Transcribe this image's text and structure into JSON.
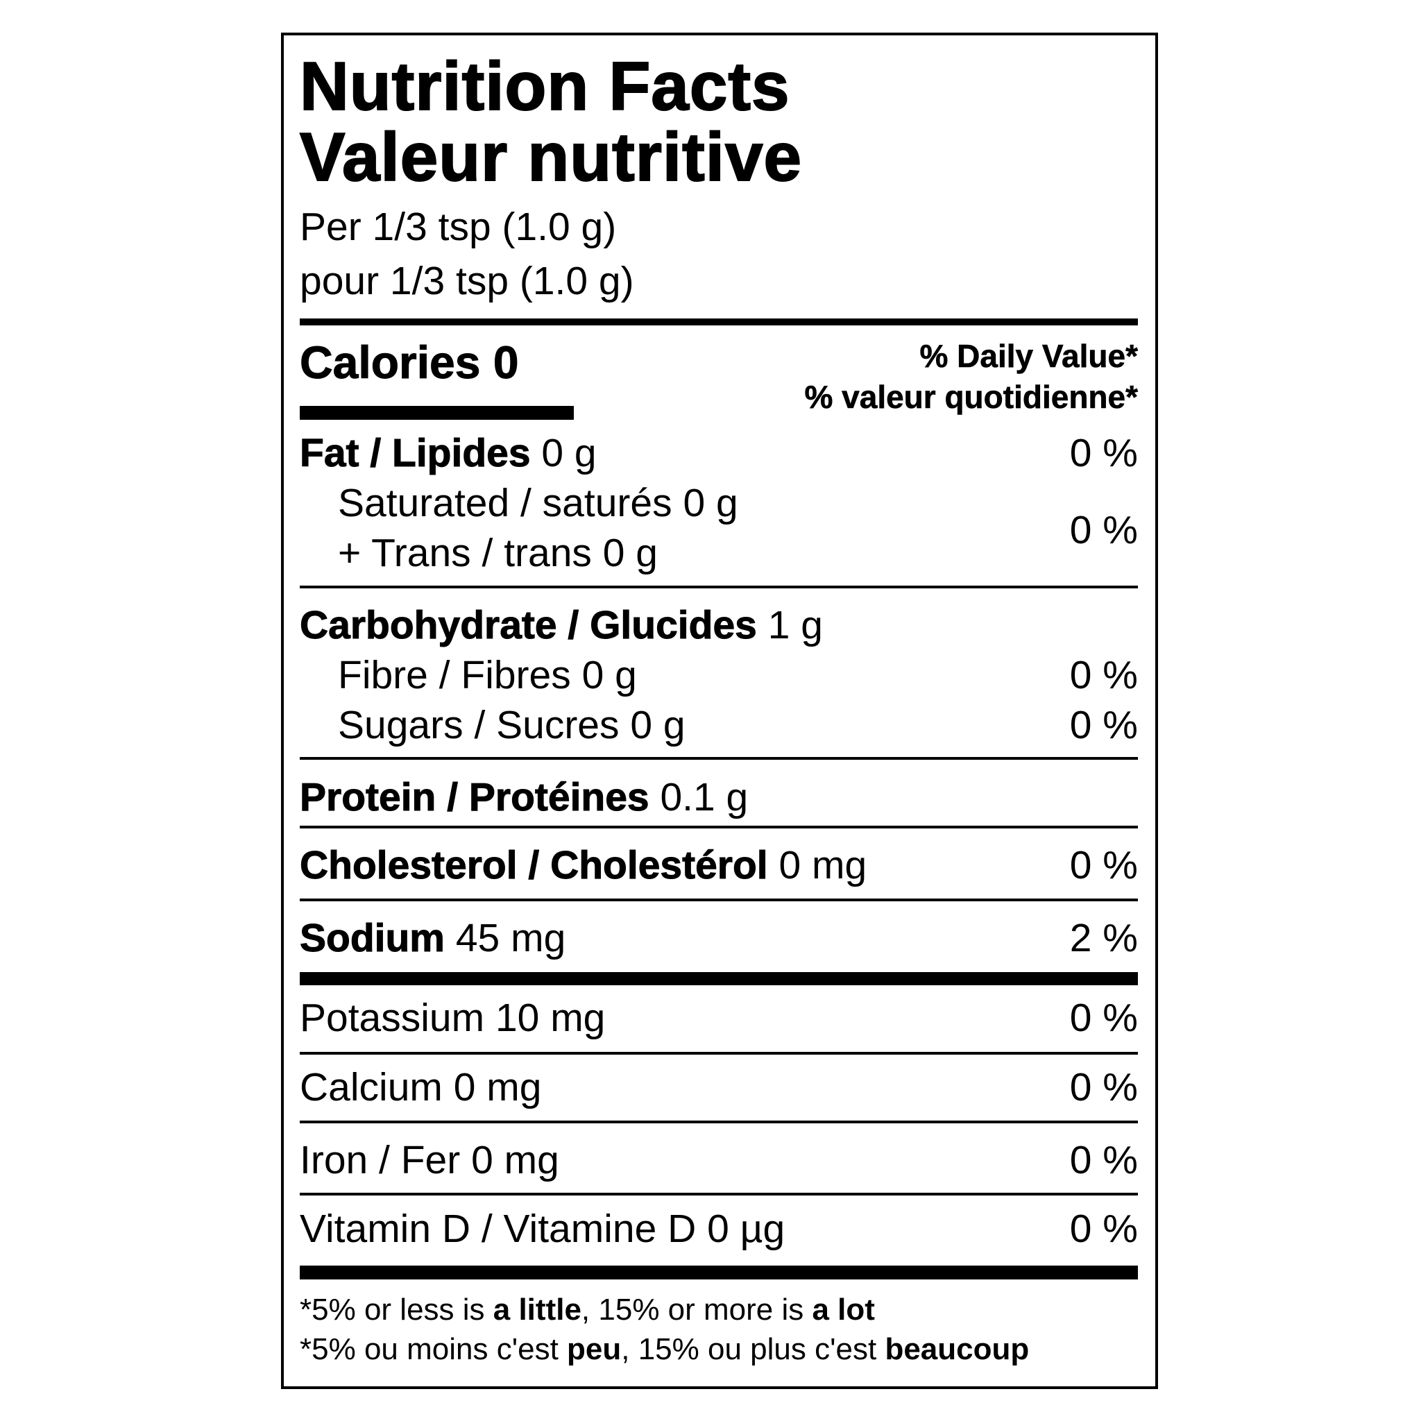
{
  "title_en": "Nutrition Facts",
  "title_fr": "Valeur nutritive",
  "serving_en": "Per 1/3 tsp (1.0 g)",
  "serving_fr": "pour 1/3 tsp (1.0 g)",
  "calories_label": "Calories",
  "calories_value": "0",
  "dv_header_en": "% Daily Value*",
  "dv_header_fr": "% valeur quotidienne*",
  "rows": {
    "fat": {
      "label": "Fat / Lipides",
      "amount": "0 g",
      "dv": "0 %"
    },
    "saturated": {
      "label": "Saturated / saturés",
      "amount": "0 g"
    },
    "trans": {
      "label": "+ Trans / trans",
      "amount": "0 g"
    },
    "sat_trans_dv": "0 %",
    "carb": {
      "label": "Carbohydrate / Glucides",
      "amount": "1 g"
    },
    "fibre": {
      "label": "Fibre / Fibres",
      "amount": "0 g",
      "dv": "0 %"
    },
    "sugars": {
      "label": "Sugars / Sucres",
      "amount": "0 g",
      "dv": "0 %"
    },
    "protein": {
      "label": "Protein / Protéines",
      "amount": "0.1 g"
    },
    "cholesterol": {
      "label": "Cholesterol / Cholestérol",
      "amount": "0 mg",
      "dv": "0 %"
    },
    "sodium": {
      "label": "Sodium",
      "amount": "45 mg",
      "dv": "2 %"
    },
    "potassium": {
      "label": "Potassium",
      "amount": "10 mg",
      "dv": "0 %"
    },
    "calcium": {
      "label": "Calcium",
      "amount": "0 mg",
      "dv": "0 %"
    },
    "iron": {
      "label": "Iron / Fer",
      "amount": "0 mg",
      "dv": "0 %"
    },
    "vitd": {
      "label": "Vitamin D / Vitamine D",
      "amount": "0 µg",
      "dv": "0 %"
    }
  },
  "footer": {
    "en": {
      "a": "*5% or less is ",
      "b": "a little",
      "c": ", 15% or more is ",
      "d": "a lot"
    },
    "fr": {
      "a": "*5% ou moins c'est ",
      "b": "peu",
      "c": ", 15% ou plus c'est ",
      "d": "beaucoup"
    }
  }
}
